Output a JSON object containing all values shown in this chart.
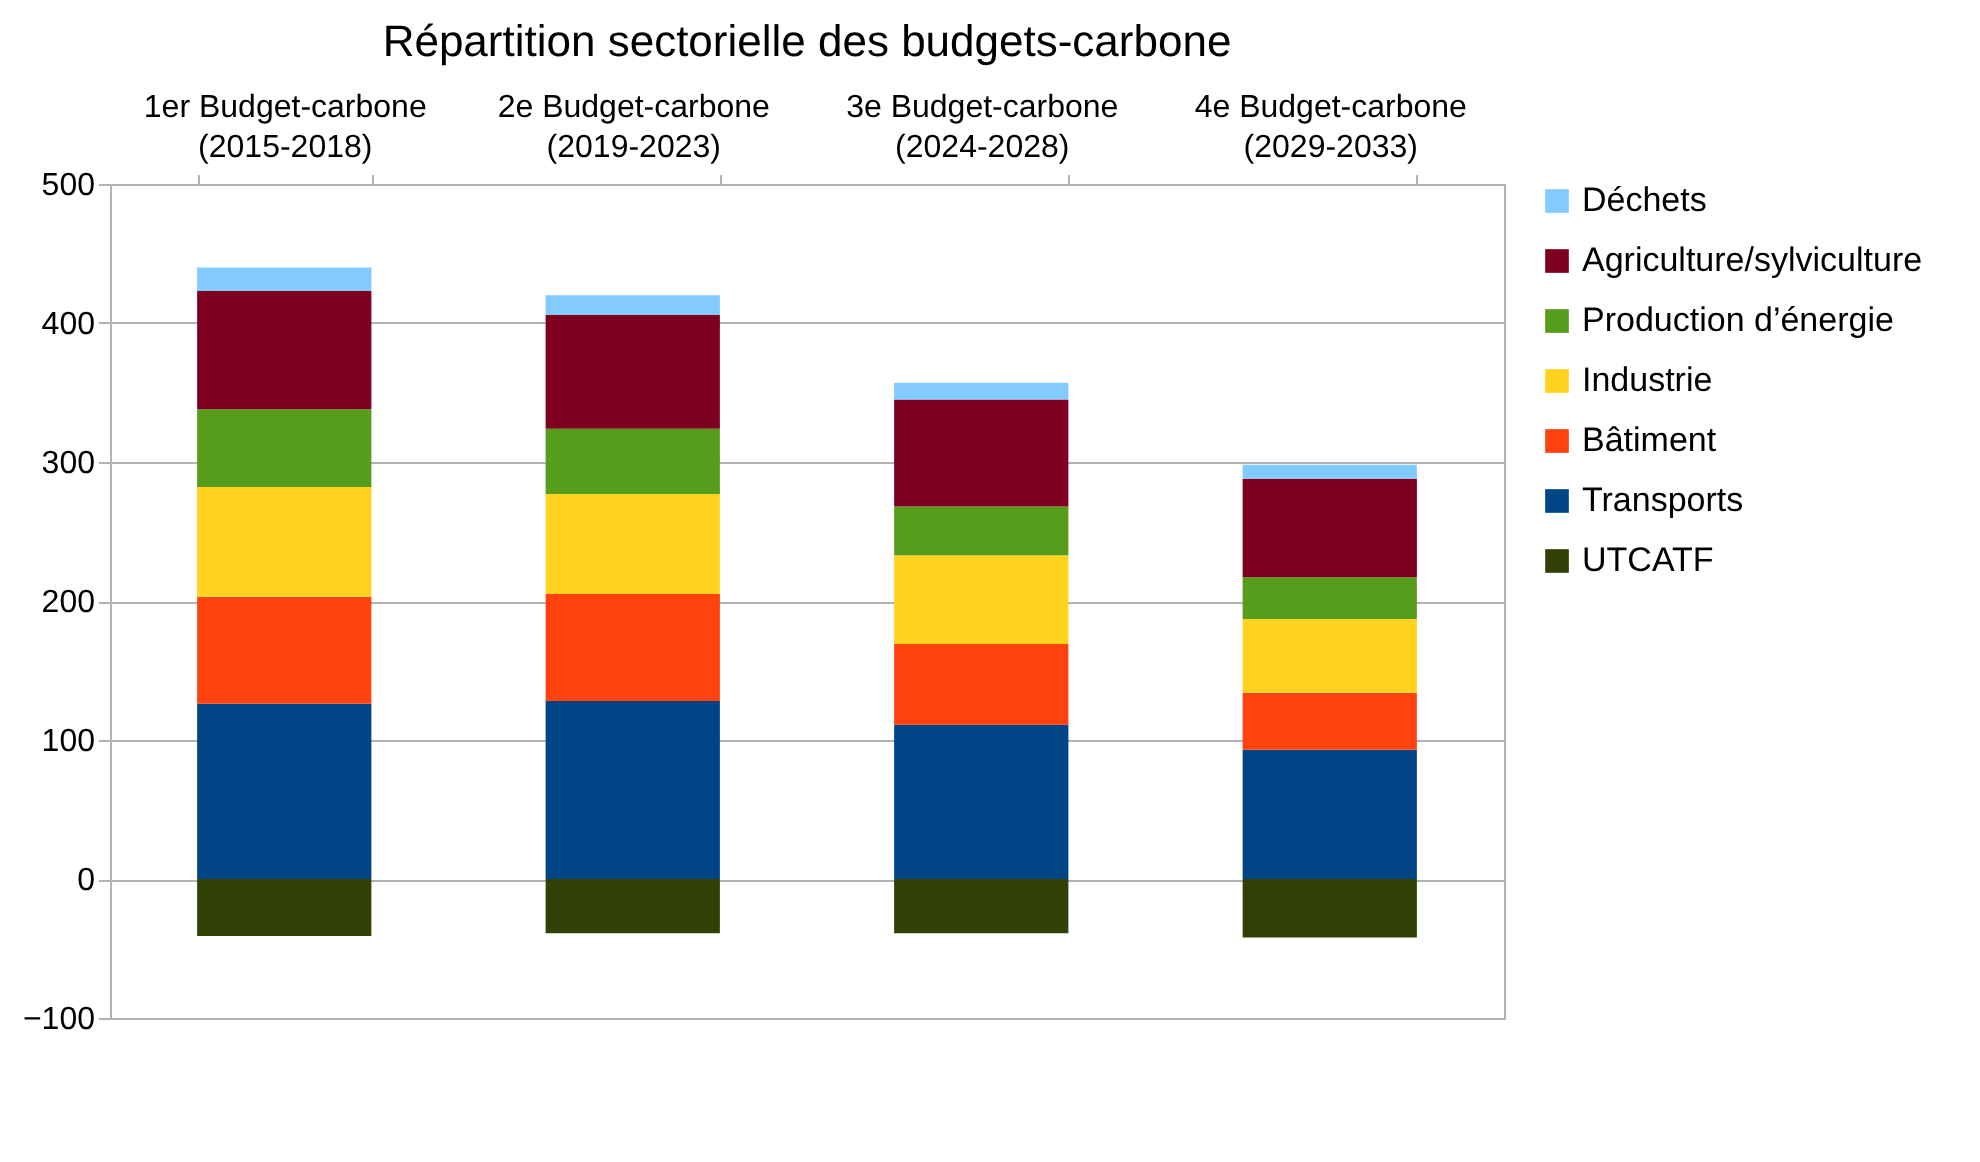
{
  "chart_data": {
    "type": "bar",
    "stacked": true,
    "title": "Répartition sectorielle des budgets-carbone",
    "categories": [
      "1er Budget-carbone (2015-2018)",
      "2e Budget-carbone (2019-2023)",
      "3e Budget-carbone (2024-2028)",
      "4e Budget-carbone (2029-2033)"
    ],
    "series": [
      {
        "name": "UTCATF",
        "color": "#314004",
        "values": [
          -41,
          -39,
          -39,
          -42
        ]
      },
      {
        "name": "Transports",
        "color": "#004586",
        "values": [
          126,
          128,
          111,
          93
        ]
      },
      {
        "name": "Bâtiment",
        "color": "#ff420e",
        "values": [
          77,
          77,
          58,
          41
        ]
      },
      {
        "name": "Industrie",
        "color": "#ffd320",
        "values": [
          79,
          72,
          64,
          53
        ]
      },
      {
        "name": "Production d’énergie",
        "color": "#579d1c",
        "values": [
          56,
          47,
          35,
          30
        ]
      },
      {
        "name": "Agriculture/sylviculture",
        "color": "#7e0021",
        "values": [
          85,
          82,
          77,
          71
        ]
      },
      {
        "name": "Déchets",
        "color": "#83caff",
        "values": [
          17,
          14,
          12,
          10
        ]
      }
    ],
    "ylim": [
      -100,
      500
    ],
    "yticks": [
      -100,
      0,
      100,
      200,
      300,
      400,
      500
    ],
    "grid": "y",
    "legend": "right"
  }
}
